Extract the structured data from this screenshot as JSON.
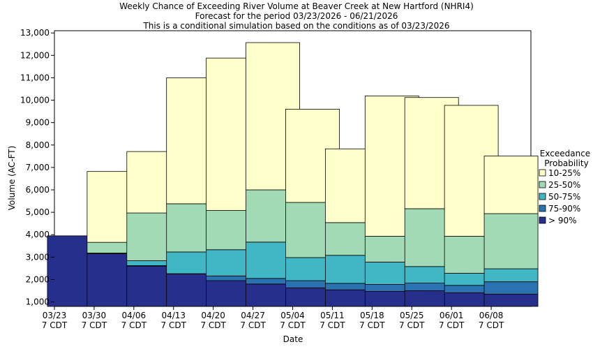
{
  "chart_data": {
    "type": "bar",
    "stacked": true,
    "title": "Weekly Chance of Exceeding River Volume at Beaver Creek at New Hartford (NHRI4)",
    "subtitle_lines": [
      "Forecast for the period 03/23/2026 - 06/21/2026",
      "This is a conditional simulation based on the conditions as of 03/23/2026"
    ],
    "xlabel": "Date",
    "ylabel": "Volume (AC-FT)",
    "ylim": [
      800,
      13100
    ],
    "yticks": [
      "1,000",
      "2,000",
      "3,000",
      "4,000",
      "5,000",
      "6,000",
      "7,000",
      "8,000",
      "9,000",
      "10,000",
      "11,000",
      "12,000",
      "13,000"
    ],
    "ytick_values": [
      1000,
      2000,
      3000,
      4000,
      5000,
      6000,
      7000,
      8000,
      9000,
      10000,
      11000,
      12000,
      13000
    ],
    "categories": [
      [
        "03/23",
        "7 CDT"
      ],
      [
        "03/30",
        "7 CDT"
      ],
      [
        "04/06",
        "7 CDT"
      ],
      [
        "04/13",
        "7 CDT"
      ],
      [
        "04/20",
        "7 CDT"
      ],
      [
        "04/27",
        "7 CDT"
      ],
      [
        "05/04",
        "7 CDT"
      ],
      [
        "05/11",
        "7 CDT"
      ],
      [
        "05/18",
        "7 CDT"
      ],
      [
        "05/25",
        "7 CDT"
      ],
      [
        "06/01",
        "7 CDT"
      ],
      [
        "06/08",
        "7 CDT"
      ]
    ],
    "legend_title": [
      "Exceedance",
      "Probability"
    ],
    "legend_position": "right",
    "grid": false,
    "levels": [
      {
        "name": "> 90%",
        "color": "#262f8c"
      },
      {
        "name": "75-90%",
        "color": "#2a73b0"
      },
      {
        "name": "50-75%",
        "color": "#41b6c4"
      },
      {
        "name": "25-50%",
        "color": "#a1dab4"
      },
      {
        "name": "10-25%",
        "color": "#ffffcc"
      }
    ],
    "bars": [
      {
        "boundaries": [
          3950,
          3950,
          3950,
          3950,
          3950
        ]
      },
      {
        "boundaries": [
          3150,
          3170,
          3180,
          3660,
          6820
        ]
      },
      {
        "boundaries": [
          2600,
          2620,
          2840,
          4970,
          7710
        ]
      },
      {
        "boundaries": [
          2250,
          2260,
          3230,
          5380,
          11000
        ]
      },
      {
        "boundaries": [
          1950,
          2160,
          3330,
          5080,
          11880
        ]
      },
      {
        "boundaries": [
          1800,
          2050,
          3670,
          6000,
          12570
        ]
      },
      {
        "boundaries": [
          1630,
          1950,
          2980,
          5440,
          9600
        ]
      },
      {
        "boundaries": [
          1540,
          1830,
          3080,
          4540,
          7830
        ]
      },
      {
        "boundaries": [
          1470,
          1780,
          2780,
          3930,
          10190
        ]
      },
      {
        "boundaries": [
          1500,
          1840,
          2580,
          5160,
          10120
        ]
      },
      {
        "boundaries": [
          1410,
          1740,
          2280,
          3930,
          9770
        ]
      },
      {
        "boundaries": [
          1350,
          1900,
          2480,
          4940,
          7510
        ]
      }
    ]
  }
}
